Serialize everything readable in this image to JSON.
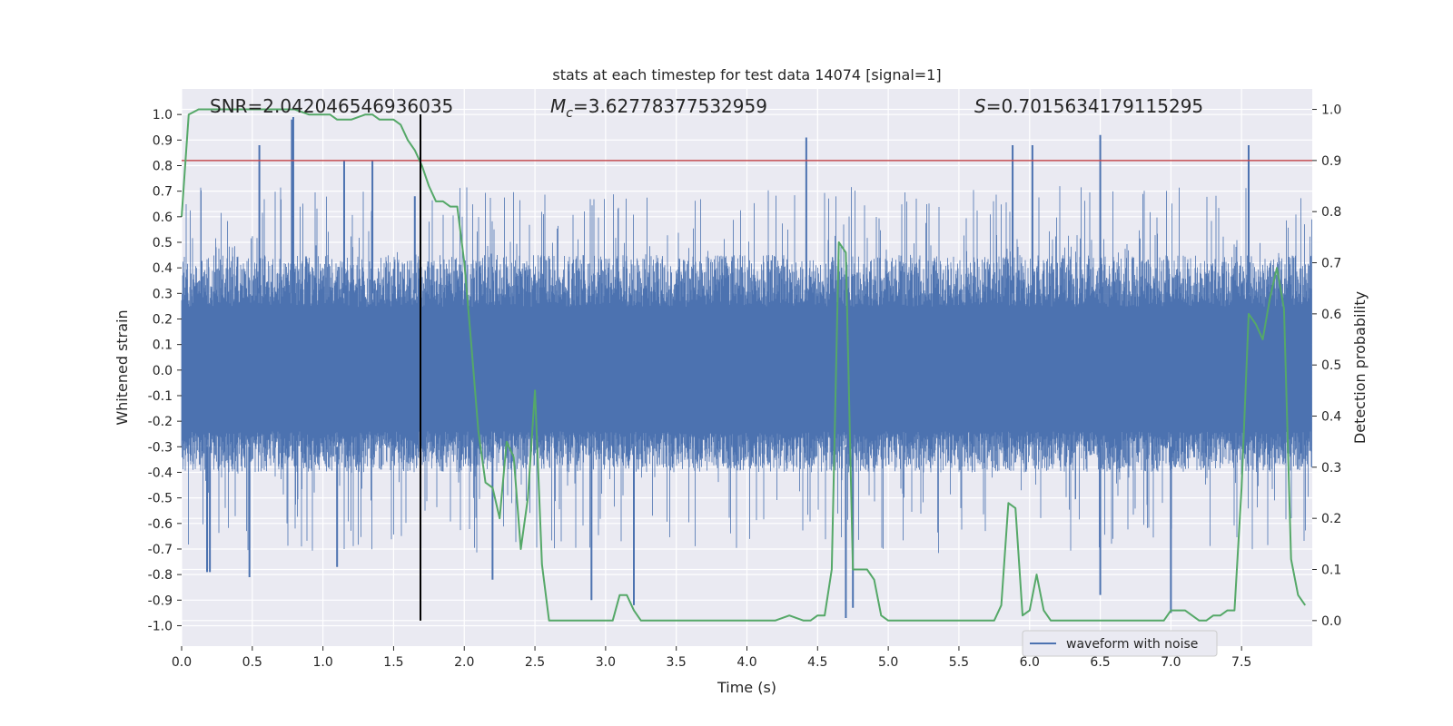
{
  "chart_data": {
    "type": "line",
    "title": "stats at each timestep for test data 14074 [signal=1]",
    "xlabel": "Time (s)",
    "ylabel_left": "Whitened strain",
    "ylabel_right": "Detection probability",
    "xlim": [
      0.0,
      8.0
    ],
    "ylim_left": [
      -1.08,
      1.1
    ],
    "ylim_right": [
      -0.05,
      1.04
    ],
    "x_ticks": [
      0.0,
      0.5,
      1.0,
      1.5,
      2.0,
      2.5,
      3.0,
      3.5,
      4.0,
      4.5,
      5.0,
      5.5,
      6.0,
      6.5,
      7.0,
      7.5
    ],
    "x_tick_labels": [
      "0.0",
      "0.5",
      "1.0",
      "1.5",
      "2.0",
      "2.5",
      "3.0",
      "3.5",
      "4.0",
      "4.5",
      "5.0",
      "5.5",
      "6.0",
      "6.5",
      "7.0",
      "7.5"
    ],
    "y_left_ticks": [
      1.0,
      0.9,
      0.8,
      0.7,
      0.6,
      0.5,
      0.4,
      0.3,
      0.2,
      0.1,
      0.0,
      -0.1,
      -0.2,
      -0.3,
      -0.4,
      -0.5,
      -0.6,
      -0.7,
      -0.8,
      -0.9,
      -1.0
    ],
    "y_left_tick_labels": [
      "1.0",
      "0.9",
      "0.8",
      "0.7",
      "0.6",
      "0.5",
      "0.4",
      "0.3",
      "0.2",
      "0.1",
      "0.0",
      "-0.1",
      "-0.2",
      "-0.3",
      "-0.4",
      "-0.5",
      "-0.6",
      "-0.7",
      "-0.8",
      "-0.9",
      "-1.0"
    ],
    "y_right_ticks": [
      1.0,
      0.9,
      0.8,
      0.7,
      0.6,
      0.5,
      0.4,
      0.3,
      0.2,
      0.1,
      0.0
    ],
    "y_right_tick_labels": [
      "1.0",
      "0.9",
      "0.8",
      "0.7",
      "0.6",
      "0.5",
      "0.4",
      "0.3",
      "0.2",
      "0.1",
      "0.0"
    ],
    "grid": true,
    "legend": {
      "placement": "lower-right",
      "entries": [
        "waveform with noise"
      ]
    },
    "annotations": {
      "snr": "SNR=2.042046546936035",
      "mc_symbol": "M",
      "mc_subscript": "c",
      "mc_value": "=3.62778377532959",
      "s_symbol": "S",
      "s_value": "=0.7015634179115295"
    },
    "threshold_line": {
      "axis": "right",
      "y": 0.9,
      "color": "#c44e52"
    },
    "marker_line": {
      "axis": "left",
      "x": 1.69,
      "y_range": [
        -0.98,
        1.0
      ],
      "color": "#000000"
    },
    "series": [
      {
        "name": "waveform with noise",
        "axis": "left",
        "color": "#4c72b0",
        "kind": "dense-noise",
        "typical_envelope": [
          -0.4,
          0.45
        ],
        "peaks_top": [
          [
            0.55,
            0.88
          ],
          [
            0.78,
            0.98
          ],
          [
            0.79,
            0.99
          ],
          [
            1.15,
            0.82
          ],
          [
            1.35,
            0.82
          ],
          [
            1.65,
            0.68
          ],
          [
            4.42,
            0.91
          ],
          [
            5.88,
            0.88
          ],
          [
            6.02,
            0.88
          ],
          [
            6.5,
            0.92
          ],
          [
            7.55,
            0.88
          ]
        ],
        "peaks_bottom": [
          [
            0.18,
            -0.79
          ],
          [
            0.2,
            -0.79
          ],
          [
            0.48,
            -0.81
          ],
          [
            1.1,
            -0.77
          ],
          [
            2.2,
            -0.82
          ],
          [
            2.9,
            -0.9
          ],
          [
            3.2,
            -0.92
          ],
          [
            4.7,
            -0.97
          ],
          [
            4.75,
            -0.93
          ],
          [
            6.5,
            -0.88
          ],
          [
            7.0,
            -0.95
          ]
        ]
      },
      {
        "name": "",
        "axis": "right",
        "color": "#55a868",
        "x": [
          0.0,
          0.05,
          0.12,
          0.2,
          0.3,
          0.5,
          0.7,
          0.8,
          0.9,
          1.0,
          1.05,
          1.1,
          1.2,
          1.3,
          1.35,
          1.4,
          1.45,
          1.5,
          1.55,
          1.6,
          1.65,
          1.7,
          1.75,
          1.8,
          1.85,
          1.9,
          1.95,
          2.0,
          2.05,
          2.1,
          2.15,
          2.2,
          2.25,
          2.3,
          2.35,
          2.4,
          2.45,
          2.5,
          2.55,
          2.6,
          2.65,
          2.7,
          2.8,
          2.9,
          3.0,
          3.05,
          3.1,
          3.15,
          3.2,
          3.25,
          3.3,
          3.4,
          3.5,
          3.6,
          3.7,
          3.8,
          3.9,
          4.0,
          4.1,
          4.2,
          4.3,
          4.4,
          4.45,
          4.5,
          4.55,
          4.6,
          4.65,
          4.7,
          4.75,
          4.8,
          4.85,
          4.9,
          4.95,
          5.0,
          5.05,
          5.1,
          5.5,
          5.7,
          5.75,
          5.8,
          5.85,
          5.9,
          5.95,
          6.0,
          6.05,
          6.1,
          6.15,
          6.2,
          6.25,
          6.3,
          6.4,
          6.5,
          6.6,
          6.7,
          6.8,
          6.9,
          6.95,
          7.0,
          7.05,
          7.1,
          7.15,
          7.2,
          7.25,
          7.3,
          7.35,
          7.4,
          7.45,
          7.5,
          7.55,
          7.6,
          7.65,
          7.7,
          7.75,
          7.8,
          7.85,
          7.9,
          7.95
        ],
        "values": [
          0.79,
          0.99,
          1.0,
          1.0,
          1.0,
          1.0,
          1.0,
          1.0,
          0.99,
          0.99,
          0.99,
          0.98,
          0.98,
          0.99,
          0.99,
          0.98,
          0.98,
          0.98,
          0.97,
          0.94,
          0.92,
          0.89,
          0.85,
          0.82,
          0.82,
          0.81,
          0.81,
          0.7,
          0.54,
          0.37,
          0.27,
          0.26,
          0.2,
          0.35,
          0.32,
          0.14,
          0.24,
          0.45,
          0.11,
          0.0,
          0.0,
          0.0,
          0.0,
          0.0,
          0.0,
          0.0,
          0.05,
          0.05,
          0.02,
          0.0,
          0.0,
          0.0,
          0.0,
          0.0,
          0.0,
          0.0,
          0.0,
          0.0,
          0.0,
          0.0,
          0.01,
          0.0,
          0.0,
          0.01,
          0.01,
          0.1,
          0.74,
          0.72,
          0.1,
          0.1,
          0.1,
          0.08,
          0.01,
          0.0,
          0.0,
          0.0,
          0.0,
          0.0,
          0.0,
          0.03,
          0.23,
          0.22,
          0.01,
          0.02,
          0.09,
          0.02,
          0.0,
          0.0,
          0.0,
          0.0,
          0.0,
          0.0,
          0.0,
          0.0,
          0.0,
          0.0,
          0.0,
          0.02,
          0.02,
          0.02,
          0.01,
          0.0,
          0.0,
          0.01,
          0.01,
          0.02,
          0.02,
          0.26,
          0.6,
          0.58,
          0.55,
          0.63,
          0.69,
          0.61,
          0.12,
          0.05,
          0.03
        ]
      }
    ]
  }
}
